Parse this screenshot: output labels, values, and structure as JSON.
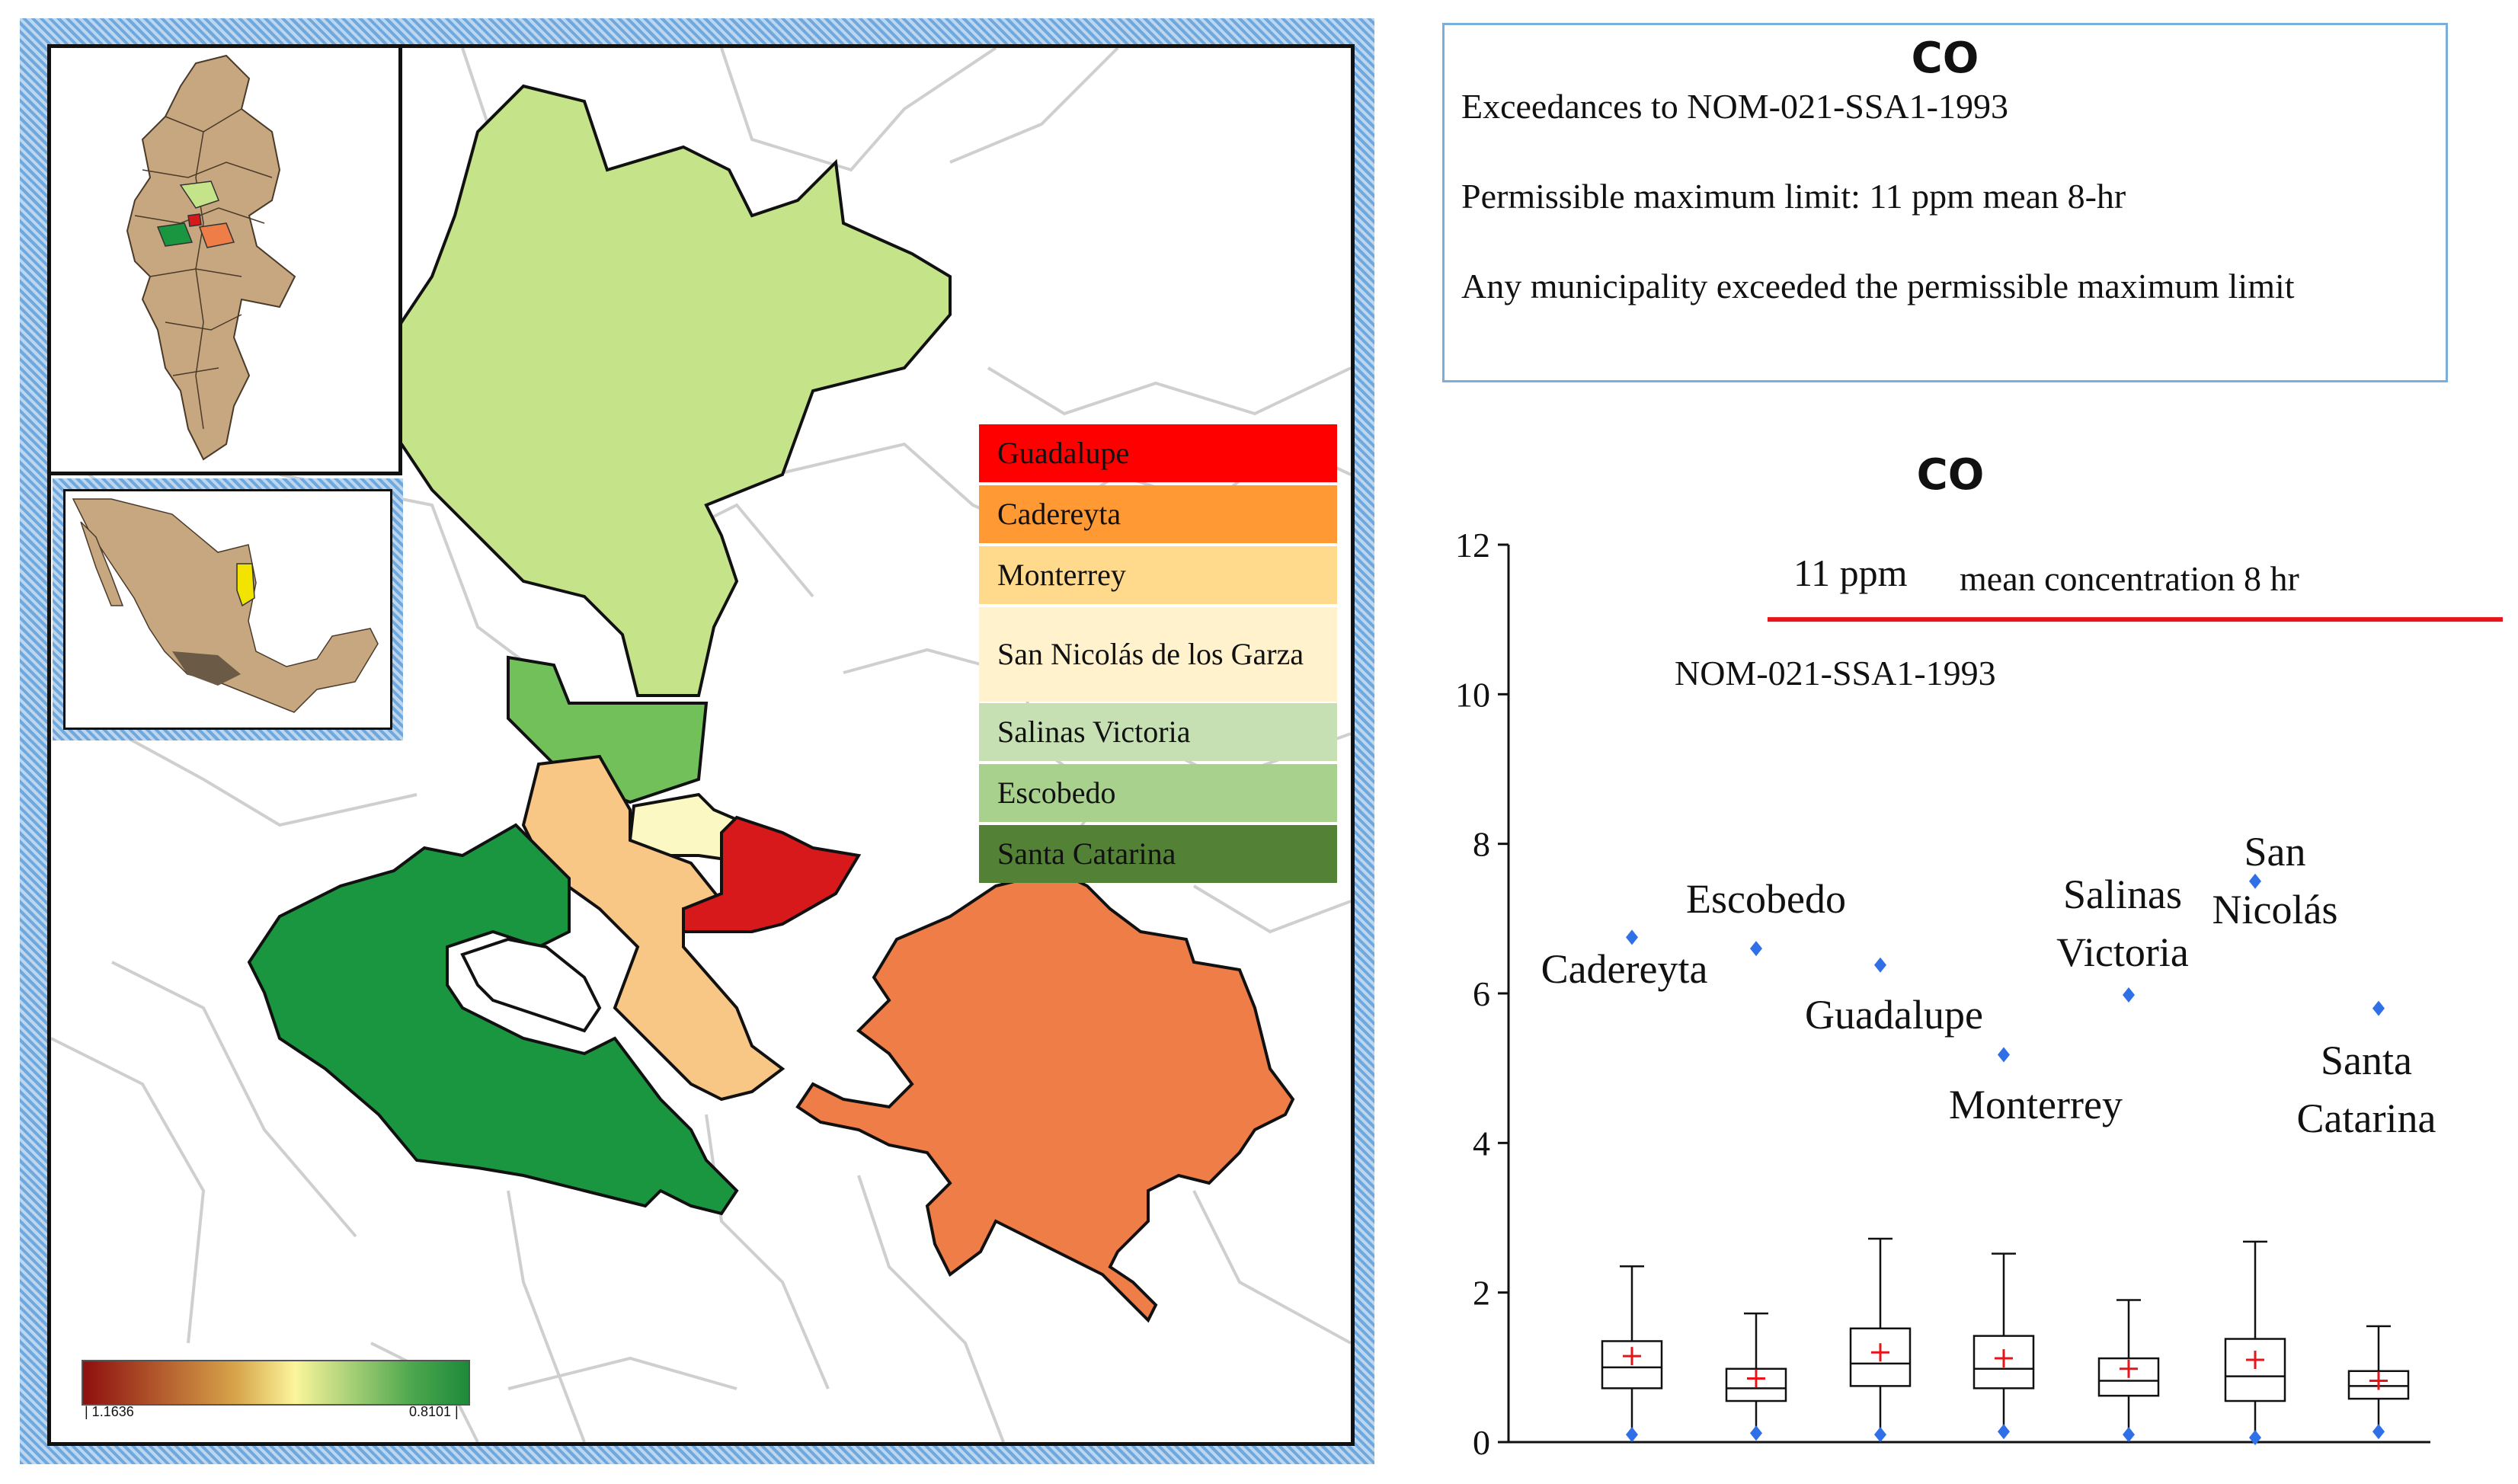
{
  "map": {
    "legend": [
      {
        "label": "Guadalupe",
        "color": "#ff0000"
      },
      {
        "label": "Cadereyta",
        "color": "#ff9933"
      },
      {
        "label": "Monterrey",
        "color": "#ffd98c"
      },
      {
        "label": "San Nicolás de los Garza",
        "color": "#fff2cc"
      },
      {
        "label": "Salinas Victoria",
        "color": "#c6e0b4"
      },
      {
        "label": "Escobedo",
        "color": "#a9d18e"
      },
      {
        "label": "Santa Catarina",
        "color": "#538135"
      }
    ],
    "colorbar": {
      "min_label": "| 1.1636",
      "max_label": "0.8101 |"
    },
    "region_colors": {
      "salinas_victoria": "#c5e48a",
      "escobedo": "#72c05a",
      "san_nicolas": "#fcf8c4",
      "monterrey": "#f9c785",
      "guadalupe": "#d7191c",
      "cadereyta": "#ee7d48",
      "santa_catarina": "#1a9641"
    }
  },
  "info": {
    "title": "CO",
    "line1": "Exceedances to NOM-021-SSA1-1993",
    "line2": "Permissible maximum limit: 11 ppm mean 8-hr",
    "line3": "Any municipality exceeded the permissible maximum limit"
  },
  "chart_data": {
    "type": "box",
    "title": "CO",
    "ylim": [
      0,
      12
    ],
    "yticks": [
      0,
      2,
      4,
      6,
      8,
      10,
      12
    ],
    "ytick_labels": [
      "0",
      "2",
      "4",
      "6",
      "8",
      "10",
      "12"
    ],
    "limit": {
      "value": 11,
      "label_value": "11 ppm",
      "label_desc": "mean concentration 8 hr",
      "norm": "NOM-021-SSA1-1993",
      "color": "#e8141a"
    },
    "mean_marker_color": "#e8141a",
    "outlier_color": "#2f6fe8",
    "series": [
      {
        "name": "Cadereyta",
        "label_lines": [
          "Cadereyta"
        ],
        "whisker_low": 0.12,
        "q1": 0.72,
        "median": 1.0,
        "q3": 1.35,
        "whisker_high": 2.35,
        "mean": 1.15,
        "max": 6.75,
        "min": 0.1
      },
      {
        "name": "Escobedo",
        "label_lines": [
          "Escobedo"
        ],
        "whisker_low": 0.15,
        "q1": 0.55,
        "median": 0.72,
        "q3": 0.98,
        "whisker_high": 1.72,
        "mean": 0.85,
        "max": 6.6,
        "min": 0.12
      },
      {
        "name": "Guadalupe",
        "label_lines": [
          "Guadalupe"
        ],
        "whisker_low": 0.1,
        "q1": 0.75,
        "median": 1.05,
        "q3": 1.52,
        "whisker_high": 2.72,
        "mean": 1.2,
        "max": 6.38,
        "min": 0.1
      },
      {
        "name": "Monterrey",
        "label_lines": [
          "Monterrey"
        ],
        "whisker_low": 0.15,
        "q1": 0.72,
        "median": 0.98,
        "q3": 1.42,
        "whisker_high": 2.52,
        "mean": 1.12,
        "max": 5.18,
        "min": 0.14
      },
      {
        "name": "Salinas Victoria",
        "label_lines": [
          "Salinas",
          "Victoria"
        ],
        "whisker_low": 0.12,
        "q1": 0.62,
        "median": 0.82,
        "q3": 1.12,
        "whisker_high": 1.9,
        "mean": 0.98,
        "max": 5.98,
        "min": 0.1
      },
      {
        "name": "San Nicolás",
        "label_lines": [
          "San",
          "Nicolás"
        ],
        "whisker_low": 0.08,
        "q1": 0.55,
        "median": 0.88,
        "q3": 1.38,
        "whisker_high": 2.68,
        "mean": 1.1,
        "max": 7.5,
        "min": 0.06
      },
      {
        "name": "Santa Catarina",
        "label_lines": [
          "Santa",
          "Catarina"
        ],
        "whisker_low": 0.15,
        "q1": 0.58,
        "median": 0.75,
        "q3": 0.95,
        "whisker_high": 1.55,
        "mean": 0.82,
        "max": 5.8,
        "min": 0.14
      }
    ]
  }
}
